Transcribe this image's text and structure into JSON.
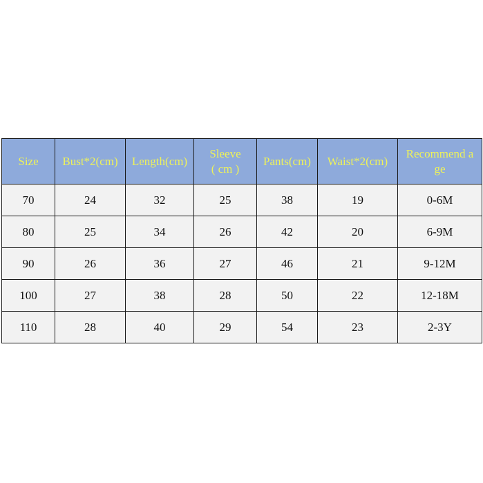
{
  "table": {
    "headers": [
      "Size",
      "Bust*2(cm)",
      "Length(cm)",
      "Sleeve\n( cm )",
      "Pants(cm)",
      "Waist*2(cm)",
      "Recommend a\nge"
    ],
    "rows": [
      [
        "70",
        "24",
        "32",
        "25",
        "38",
        "19",
        "0-6M"
      ],
      [
        "80",
        "25",
        "34",
        "26",
        "42",
        "20",
        "6-9M"
      ],
      [
        "90",
        "26",
        "36",
        "27",
        "46",
        "21",
        "9-12M"
      ],
      [
        "100",
        "27",
        "38",
        "28",
        "50",
        "22",
        "12-18M"
      ],
      [
        "110",
        "28",
        "40",
        "29",
        "54",
        "23",
        "2-3Y"
      ]
    ]
  },
  "colors": {
    "header_bg": "#8eaadb",
    "header_text": "#eef25a",
    "cell_bg": "#f2f2f2",
    "border": "#1a1a1a"
  }
}
